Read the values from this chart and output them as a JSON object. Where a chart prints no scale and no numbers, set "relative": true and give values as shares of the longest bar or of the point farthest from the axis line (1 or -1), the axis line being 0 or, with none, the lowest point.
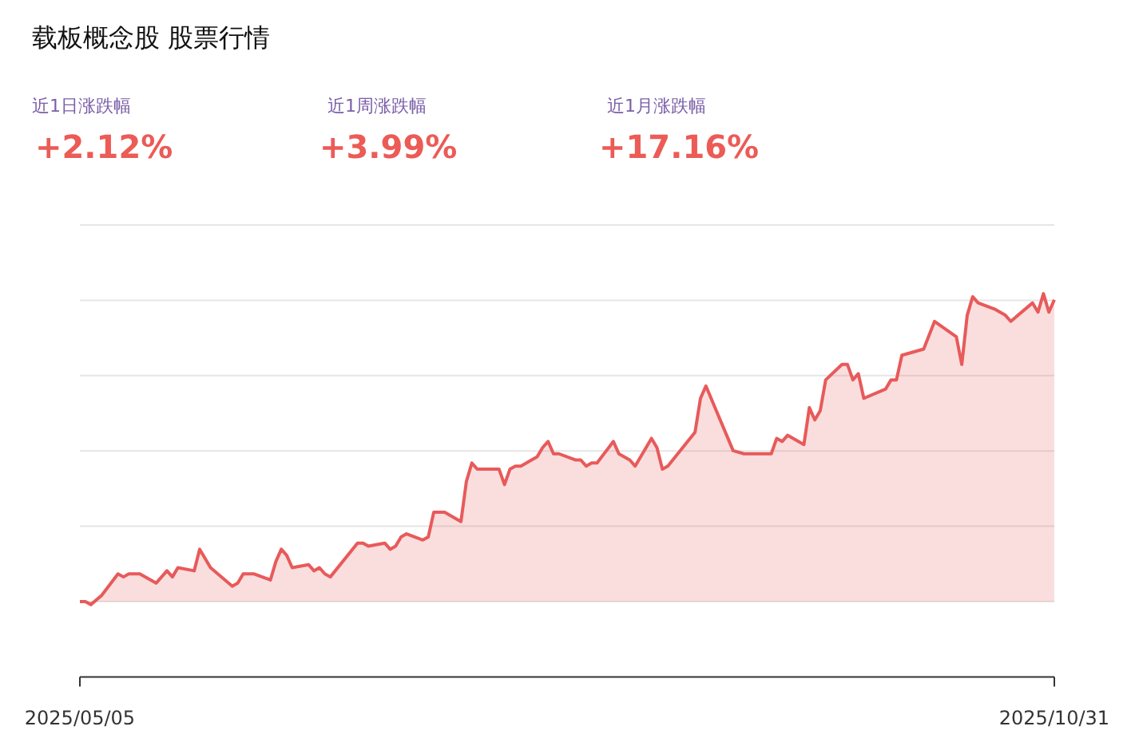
{
  "chart_data": {
    "type": "area",
    "title": "载板概念股 股票行情",
    "annotations": [
      "近1日涨跌幅",
      "+2.12%",
      "近1周涨跌幅",
      "+3.99%",
      "近1月涨跌幅",
      "+17.16%"
    ],
    "relative": true,
    "grid": "y",
    "line_style": "solid",
    "xlim": [
      "2025-05-05",
      "2025-10-31"
    ],
    "xticks": [
      {
        "value": "2025-05-05",
        "label": "2025/05/05"
      },
      {
        "value": "2025-10-31",
        "label": "2025/10/31"
      }
    ],
    "x": [
      "2025-05-05",
      "2025-05-06",
      "2025-05-07",
      "2025-05-09",
      "2025-05-12",
      "2025-05-13",
      "2025-05-14",
      "2025-05-15",
      "2025-05-16",
      "2025-05-19",
      "2025-05-21",
      "2025-05-22",
      "2025-05-23",
      "2025-05-26",
      "2025-05-27",
      "2025-05-29",
      "2025-06-02",
      "2025-06-03",
      "2025-06-04",
      "2025-06-06",
      "2025-06-09",
      "2025-06-10",
      "2025-06-11",
      "2025-06-12",
      "2025-06-13",
      "2025-06-16",
      "2025-06-17",
      "2025-06-18",
      "2025-06-19",
      "2025-06-20",
      "2025-06-25",
      "2025-06-26",
      "2025-06-27",
      "2025-06-30",
      "2025-07-01",
      "2025-07-02",
      "2025-07-03",
      "2025-07-04",
      "2025-07-07",
      "2025-07-08",
      "2025-07-09",
      "2025-07-11",
      "2025-07-14",
      "2025-07-15",
      "2025-07-16",
      "2025-07-17",
      "2025-07-21",
      "2025-07-22",
      "2025-07-23",
      "2025-07-24",
      "2025-07-25",
      "2025-07-28",
      "2025-07-29",
      "2025-07-30",
      "2025-07-31",
      "2025-08-01",
      "2025-08-04",
      "2025-08-05",
      "2025-08-06",
      "2025-08-07",
      "2025-08-08",
      "2025-08-11",
      "2025-08-12",
      "2025-08-14",
      "2025-08-15",
      "2025-08-18",
      "2025-08-19",
      "2025-08-20",
      "2025-08-21",
      "2025-08-26",
      "2025-08-27",
      "2025-08-28",
      "2025-09-02",
      "2025-09-04",
      "2025-09-05",
      "2025-09-09",
      "2025-09-10",
      "2025-09-11",
      "2025-09-12",
      "2025-09-15",
      "2025-09-16",
      "2025-09-17",
      "2025-09-18",
      "2025-09-19",
      "2025-09-22",
      "2025-09-23",
      "2025-09-24",
      "2025-09-25",
      "2025-09-26",
      "2025-09-30",
      "2025-10-01",
      "2025-10-02",
      "2025-10-03",
      "2025-10-07",
      "2025-10-09",
      "2025-10-13",
      "2025-10-14",
      "2025-10-15",
      "2025-10-16",
      "2025-10-17",
      "2025-10-20",
      "2025-10-22",
      "2025-10-23",
      "2025-10-27",
      "2025-10-28",
      "2025-10-29",
      "2025-10-30",
      "2025-10-31"
    ],
    "series": [
      {
        "color": "#e85a5a",
        "values": [
          0.0,
          0.0,
          -0.01,
          0.02,
          0.09,
          0.08,
          0.09,
          0.09,
          0.09,
          0.06,
          0.1,
          0.08,
          0.11,
          0.1,
          0.17,
          0.11,
          0.05,
          0.06,
          0.09,
          0.09,
          0.07,
          0.13,
          0.17,
          0.15,
          0.11,
          0.12,
          0.1,
          0.11,
          0.09,
          0.08,
          0.19,
          0.19,
          0.18,
          0.19,
          0.17,
          0.18,
          0.21,
          0.22,
          0.2,
          0.21,
          0.29,
          0.29,
          0.26,
          0.39,
          0.45,
          0.43,
          0.43,
          0.38,
          0.43,
          0.44,
          0.44,
          0.47,
          0.5,
          0.52,
          0.48,
          0.48,
          0.46,
          0.46,
          0.44,
          0.45,
          0.45,
          0.52,
          0.48,
          0.46,
          0.44,
          0.53,
          0.5,
          0.43,
          0.44,
          0.55,
          0.66,
          0.7,
          0.49,
          0.48,
          0.48,
          0.48,
          0.53,
          0.52,
          0.54,
          0.51,
          0.63,
          0.59,
          0.62,
          0.72,
          0.77,
          0.77,
          0.72,
          0.74,
          0.66,
          0.69,
          0.72,
          0.72,
          0.8,
          0.82,
          0.91,
          0.86,
          0.77,
          0.93,
          0.99,
          0.97,
          0.95,
          0.93,
          0.91,
          0.97,
          0.94,
          1,
          0.94,
          0.98
        ]
      }
    ]
  }
}
